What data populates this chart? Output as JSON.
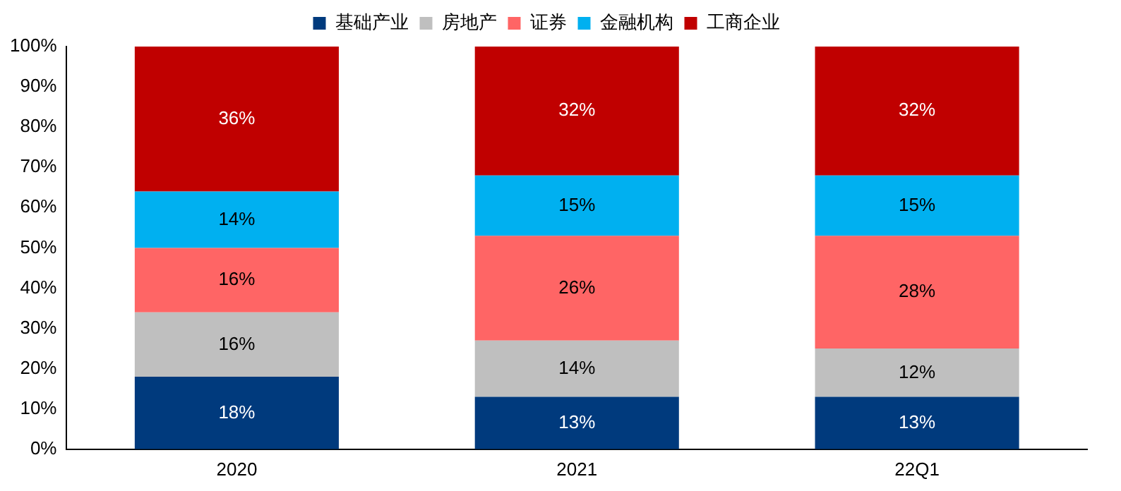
{
  "chart_data": {
    "type": "bar",
    "stacked": true,
    "categories": [
      "2020",
      "2021",
      "22Q1"
    ],
    "series": [
      {
        "name": "基础产业",
        "color": "#003a7d",
        "values": [
          18,
          13,
          13
        ],
        "value_labels": [
          "18%",
          "13%",
          "13%"
        ]
      },
      {
        "name": "房地产",
        "color": "#bfbfbf",
        "values": [
          16,
          14,
          12
        ],
        "value_labels": [
          "16%",
          "14%",
          "12%"
        ]
      },
      {
        "name": "证券",
        "color": "#ff6565",
        "values": [
          16,
          26,
          28
        ],
        "value_labels": [
          "16%",
          "26%",
          "28%"
        ]
      },
      {
        "name": "金融机构",
        "color": "#00b0f0",
        "values": [
          14,
          15,
          15
        ],
        "value_labels": [
          "14%",
          "15%",
          "15%"
        ]
      },
      {
        "name": "工商企业",
        "color": "#c00000",
        "values": [
          36,
          32,
          32
        ],
        "value_labels": [
          "36%",
          "32%",
          "32%"
        ]
      }
    ],
    "ylim": [
      0,
      100
    ],
    "yticks": [
      {
        "value": 0,
        "label": "0%"
      },
      {
        "value": 10,
        "label": "10%"
      },
      {
        "value": 20,
        "label": "20%"
      },
      {
        "value": 30,
        "label": "30%"
      },
      {
        "value": 40,
        "label": "40%"
      },
      {
        "value": 50,
        "label": "50%"
      },
      {
        "value": 60,
        "label": "60%"
      },
      {
        "value": 70,
        "label": "70%"
      },
      {
        "value": 80,
        "label": "80%"
      },
      {
        "value": 90,
        "label": "90%"
      },
      {
        "value": 100,
        "label": "100%"
      }
    ],
    "grid": false,
    "legend": "top"
  }
}
